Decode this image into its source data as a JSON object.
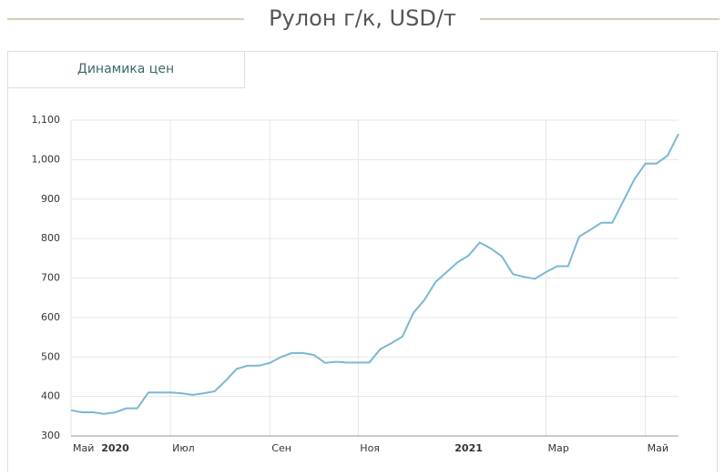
{
  "title": "Рулон г/к, USD/т",
  "tab": "Динамика цен",
  "chart_data": {
    "type": "line",
    "categories": [
      "Май",
      null,
      null,
      null,
      "2020",
      null,
      null,
      null,
      null,
      "Июл",
      null,
      null,
      null,
      null,
      null,
      null,
      null,
      null,
      "Сен",
      null,
      null,
      null,
      null,
      null,
      null,
      null,
      "Ноя",
      null,
      null,
      null,
      null,
      null,
      null,
      null,
      null,
      null,
      "2021",
      null,
      null,
      null,
      null,
      null,
      null,
      "Мар",
      null,
      null,
      null,
      null,
      null,
      null,
      null,
      null,
      "Май",
      null,
      null,
      null
    ],
    "values": [
      365,
      360,
      360,
      356,
      360,
      370,
      370,
      410,
      410,
      410,
      408,
      404,
      408,
      413,
      440,
      470,
      478,
      478,
      485,
      500,
      510,
      510,
      505,
      485,
      488,
      486,
      486,
      486,
      520,
      535,
      552,
      612,
      645,
      690,
      715,
      740,
      757,
      790,
      775,
      755,
      710,
      703,
      698,
      715,
      730,
      730,
      805,
      822,
      840,
      840,
      895,
      950,
      990,
      990,
      1010,
      1065
    ],
    "color": "#7ab8d4",
    "ylim": [
      300,
      1100
    ],
    "yticks": [
      300,
      400,
      500,
      600,
      700,
      800,
      900,
      {
        "value": 1000,
        "label": "1,000"
      },
      {
        "value": 1100,
        "label": "1,100"
      }
    ],
    "grid": true
  }
}
